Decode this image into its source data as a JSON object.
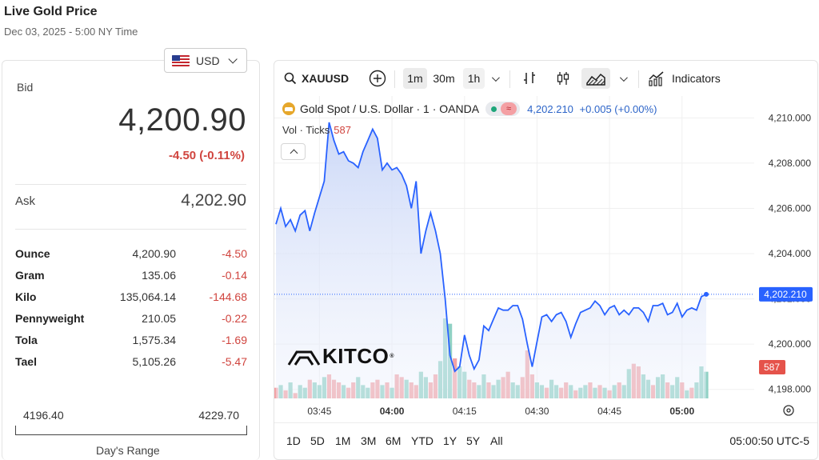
{
  "header": {
    "title": "Live Gold Price",
    "subtitle": "Dec 03, 2025 - 5:00 NY Time"
  },
  "currency": {
    "selected": "USD",
    "flag_icon": "us-flag-icon"
  },
  "quote": {
    "bid_label": "Bid",
    "bid": "4,200.90",
    "change": "-4.50 (-0.11%)",
    "ask_label": "Ask",
    "ask": "4,202.90"
  },
  "units": [
    {
      "name": "Ounce",
      "value": "4,200.90",
      "change": "-4.50"
    },
    {
      "name": "Gram",
      "value": "135.06",
      "change": "-0.14"
    },
    {
      "name": "Kilo",
      "value": "135,064.14",
      "change": "-144.68"
    },
    {
      "name": "Pennyweight",
      "value": "210.05",
      "change": "-0.22"
    },
    {
      "name": "Tola",
      "value": "1,575.34",
      "change": "-1.69"
    },
    {
      "name": "Tael",
      "value": "5,105.26",
      "change": "-5.47"
    }
  ],
  "days_range": {
    "low": "4196.40",
    "high": "4229.70",
    "label": "Day's Range"
  },
  "chart_toolbar": {
    "symbol": "XAUUSD",
    "intervals": [
      "1m",
      "30m",
      "1h"
    ],
    "active_interval": "1m",
    "indicators_label": "Indicators"
  },
  "chart_legend": {
    "title": "Gold Spot / U.S. Dollar · 1 · OANDA",
    "status_icon": "≈",
    "last": "4,202.210",
    "change": "+0.005 (+0.00%)",
    "vol_label": "Vol · Ticks",
    "vol_value": "587"
  },
  "logo": {
    "text": "KITCO",
    "mark": "®"
  },
  "range_buttons": [
    "1D",
    "5D",
    "1M",
    "3M",
    "6M",
    "YTD",
    "1Y",
    "5Y",
    "All"
  ],
  "time_readout": "05:00:50 UTC-5",
  "colors": {
    "line": "#2962ff",
    "area_top": "#c9d6f7",
    "up_volume": "#8fd1c4",
    "down_volume": "#f2a3a6",
    "negative": "#d0443e",
    "price_tag": "#2962ff",
    "volume_tag": "#e5534b"
  },
  "chart_data": {
    "type": "area",
    "title": "Gold Spot / U.S. Dollar · 1 · OANDA",
    "x_ticks": [
      "03:45",
      "04:00",
      "04:15",
      "04:30",
      "04:45",
      "05:00"
    ],
    "y_ticks": [
      "4,210.000",
      "4,208.000",
      "4,206.000",
      "4,204.000",
      "4,202.000",
      "4,200.000",
      "4,198.000"
    ],
    "ylim": [
      4197.6,
      4210.4
    ],
    "price_tag": "4,202.210",
    "volume_tag": "587",
    "grid": true,
    "x_minutes": [
      0,
      1,
      2,
      3,
      4,
      5,
      6,
      7,
      8,
      9,
      10,
      11,
      12,
      13,
      14,
      15,
      16,
      17,
      18,
      19,
      20,
      21,
      22,
      23,
      24,
      25,
      26,
      27,
      28,
      29,
      30,
      31,
      32,
      33,
      34,
      35,
      36,
      37,
      38,
      39,
      40,
      41,
      42,
      43,
      44,
      45,
      46,
      47,
      48,
      49,
      50,
      51,
      52,
      53,
      54,
      55,
      56,
      57,
      58,
      59,
      60,
      61,
      62,
      63,
      64,
      65,
      66,
      67,
      68,
      69,
      70,
      71,
      72,
      73,
      74,
      75,
      76,
      77,
      78,
      79,
      80,
      81,
      82,
      83,
      84,
      85,
      86,
      87,
      88,
      89
    ],
    "x_start": "03:36",
    "price": [
      4205.3,
      4206.0,
      4205.2,
      4205.5,
      4205.0,
      4205.7,
      4205.9,
      4205.0,
      4205.8,
      4206.5,
      4207.2,
      4209.8,
      4209.0,
      4208.4,
      4208.5,
      4208.1,
      4208.0,
      4207.8,
      4208.5,
      4209.0,
      4209.5,
      4209.1,
      4207.7,
      4208.0,
      4207.7,
      4207.8,
      4207.5,
      4207.0,
      4206.0,
      4207.2,
      4204.0,
      4205.0,
      4205.8,
      4205.0,
      4204.0,
      4202.0,
      4199.5,
      4198.8,
      4199.0,
      4200.4,
      4199.5,
      4198.9,
      4199.3,
      4200.8,
      4200.6,
      4201.1,
      4201.6,
      4201.5,
      4201.5,
      4201.7,
      4201.7,
      4201.1,
      4200.0,
      4199.0,
      4200.1,
      4201.2,
      4201.3,
      4201.0,
      4201.3,
      4201.4,
      4201.0,
      4200.3,
      4200.9,
      4201.4,
      4201.5,
      4201.6,
      4201.9,
      4201.7,
      4201.3,
      4201.6,
      4201.7,
      4201.3,
      4201.5,
      4201.3,
      4201.6,
      4201.6,
      4201.4,
      4201.0,
      4201.7,
      4201.7,
      4201.8,
      4201.3,
      4201.4,
      4201.8,
      4201.2,
      4201.5,
      4201.6,
      4201.5,
      4202.1,
      4202.2
    ],
    "volume": [
      4,
      5,
      3,
      6,
      2,
      5,
      4,
      7,
      6,
      5,
      8,
      9,
      7,
      6,
      5,
      4,
      6,
      8,
      5,
      4,
      6,
      7,
      5,
      6,
      4,
      9,
      8,
      7,
      6,
      5,
      10,
      8,
      6,
      9,
      14,
      30,
      28,
      15,
      12,
      10,
      7,
      6,
      5,
      9,
      6,
      5,
      7,
      8,
      10,
      6,
      5,
      8,
      18,
      9,
      6,
      5,
      4,
      7,
      5,
      4,
      6,
      5,
      3,
      4,
      5,
      6,
      4,
      5,
      4,
      3,
      5,
      6,
      5,
      11,
      13,
      12,
      9,
      7,
      5,
      8,
      9,
      6,
      5,
      8,
      6,
      3,
      4,
      6,
      12,
      10
    ],
    "volume_up": [
      0,
      1,
      0,
      1,
      0,
      1,
      1,
      0,
      1,
      1,
      1,
      0,
      0,
      0,
      1,
      0,
      0,
      1,
      1,
      1,
      0,
      0,
      1,
      0,
      1,
      0,
      0,
      1,
      0,
      0,
      1,
      1,
      0,
      0,
      1,
      1,
      1,
      0,
      1,
      1,
      0,
      0,
      1,
      1,
      0,
      1,
      1,
      0,
      0,
      1,
      1,
      0,
      0,
      0,
      1,
      1,
      0,
      1,
      1,
      0,
      0,
      1,
      0,
      1,
      1,
      0,
      1,
      0,
      1,
      0,
      1,
      0,
      1,
      1,
      0,
      0,
      1,
      1,
      0,
      1,
      1,
      0,
      1,
      1,
      0,
      1,
      0,
      1,
      1,
      1
    ]
  }
}
